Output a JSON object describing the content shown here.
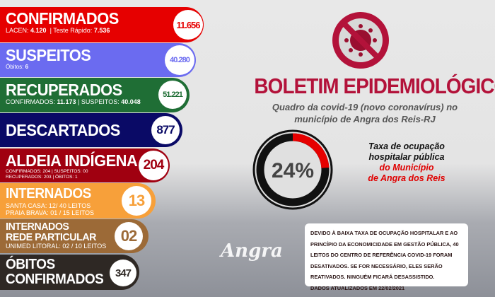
{
  "colors": {
    "confirmados": "#e60000",
    "suspeitos": "#6b6bf0",
    "recuperados": "#1f6e35",
    "descartados": "#0a0a66",
    "aldeia": "#a00010",
    "internados": "#f7a03a",
    "rede": "#9c6a37",
    "obitos": "#2e2824",
    "title": "#b3123a"
  },
  "confirmados": {
    "title": "CONFIRMADOS",
    "lacen_label": "LACEN:",
    "lacen": "4.120",
    "teste_label": "Teste Rápido:",
    "teste": "7.536",
    "total": "11.656"
  },
  "suspeitos": {
    "title": "SUSPEITOS",
    "obitos_label": "Óbitos:",
    "obitos": "6",
    "total": "40.280"
  },
  "recuperados": {
    "title": "RECUPERADOS",
    "conf_label": "CONFIRMADOS:",
    "conf": "11.173",
    "susp_label": "SUSPEITOS:",
    "susp": "40.048",
    "total": "51.221"
  },
  "descartados": {
    "title": "DESCARTADOS",
    "total": "877"
  },
  "aldeia": {
    "title": "ALDEIA INDÍGENA",
    "line1": "CONFIRMADOS: 204 | SUSPEITOS: 00",
    "line2": "RECUPERADOS: 203 | ÓBITOS: 1",
    "total": "204"
  },
  "internados": {
    "title": "INTERNADOS",
    "line1": "SANTA CASA: 12/ 40 LEITOS",
    "line2": "PRAIA BRAVA: 01 / 15 LEITOS",
    "total": "13"
  },
  "rede": {
    "title1": "INTERNADOS",
    "title2": "REDE PARTICULAR",
    "line1": "UNIMED LITORAL: 02 / 10 LEITOS",
    "total": "02"
  },
  "obitos": {
    "title1": "ÓBITOS",
    "title2": "CONFIRMADOS",
    "total": "347"
  },
  "header": {
    "icon": "no-virus-icon",
    "title": "BOLETIM EPIDEMIOLÓGICO",
    "subtitle1": "Quadro da covid-19 (novo coronavírus) no",
    "subtitle2": "município de Angra dos Reis-RJ"
  },
  "occupancy": {
    "value_percent": 24,
    "label": "24%",
    "text1": "Taxa de ocupação",
    "text2": "hospitalar pública",
    "text3": "do Município",
    "text4": "de Angra dos Reis"
  },
  "notice": {
    "text": "Devido à baixa taxa de ocupação hospitalar e ao princípio da economicidade em gestão pública, 40 leitos do Centro de Referência Covid-19 foram desativados. Se for necessário, eles serão reativados.  Ninguém ficará desassistido.",
    "updated": "Dados atualizados em 22/02/2021"
  },
  "brand": {
    "logo": "Angra"
  }
}
